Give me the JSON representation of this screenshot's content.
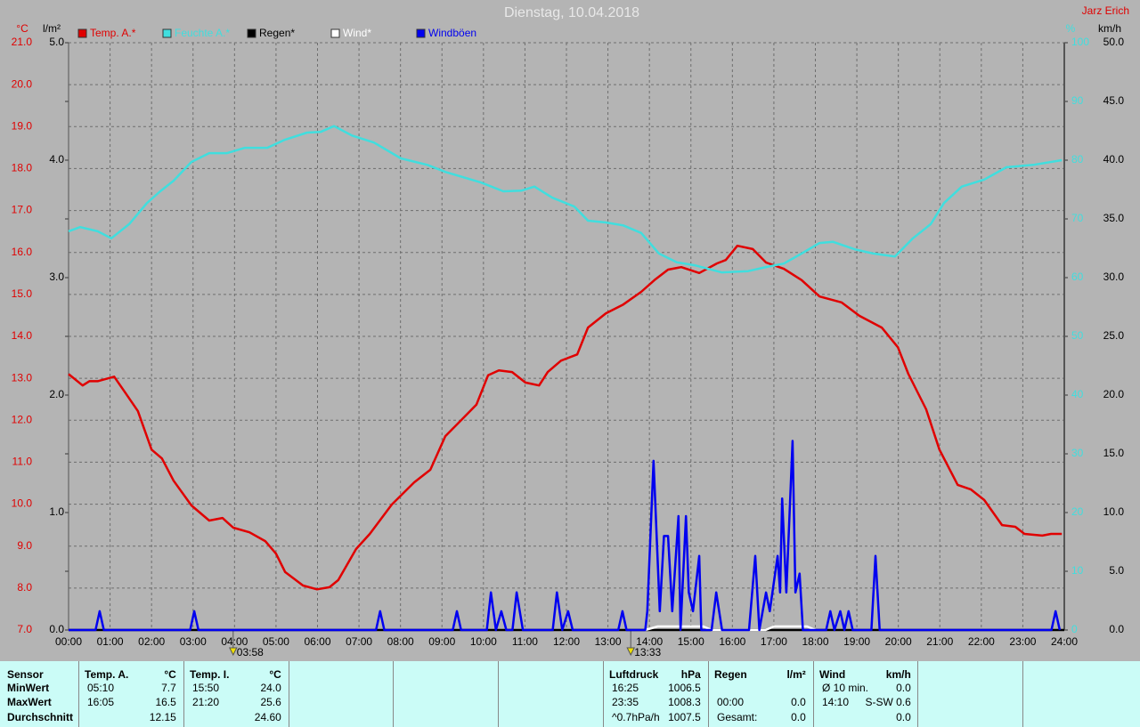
{
  "chart_data": {
    "type": "line",
    "title": "Dienstag, 10.04.2018",
    "author": "Jarz Erich",
    "y_unit": "°C",
    "rain_unit": "l/m²",
    "y2_unit": "%",
    "y3_unit": "km/h",
    "xlim": [
      0,
      24
    ],
    "xticks": [
      {
        "value": 0,
        "label": "00:00"
      },
      {
        "value": 1,
        "label": "01:00"
      },
      {
        "value": 2,
        "label": "02:00"
      },
      {
        "value": 3,
        "label": "03:00"
      },
      {
        "value": 4,
        "label": "04:00"
      },
      {
        "value": 5,
        "label": "05:00"
      },
      {
        "value": 6,
        "label": "06:00"
      },
      {
        "value": 7,
        "label": "07:00"
      },
      {
        "value": 8,
        "label": "08:00"
      },
      {
        "value": 9,
        "label": "09:00"
      },
      {
        "value": 10,
        "label": "10:00"
      },
      {
        "value": 11,
        "label": "11:00"
      },
      {
        "value": 12,
        "label": "12:00"
      },
      {
        "value": 13,
        "label": "13:00"
      },
      {
        "value": 14,
        "label": "14:00"
      },
      {
        "value": 15,
        "label": "15:00"
      },
      {
        "value": 16,
        "label": "16:00"
      },
      {
        "value": 17,
        "label": "17:00"
      },
      {
        "value": 18,
        "label": "18:00"
      },
      {
        "value": 19,
        "label": "19:00"
      },
      {
        "value": 20,
        "label": "20:00"
      },
      {
        "value": 21,
        "label": "21:00"
      },
      {
        "value": 22,
        "label": "22:00"
      },
      {
        "value": 23,
        "label": "23:00"
      },
      {
        "value": 24,
        "label": "24:00"
      }
    ],
    "ylim": [
      7,
      21
    ],
    "yticks": [
      {
        "value": 7,
        "label": "7.0"
      },
      {
        "value": 8,
        "label": "8.0"
      },
      {
        "value": 9,
        "label": "9.0"
      },
      {
        "value": 10,
        "label": "10.0"
      },
      {
        "value": 11,
        "label": "11.0"
      },
      {
        "value": 12,
        "label": "12.0"
      },
      {
        "value": 13,
        "label": "13.0"
      },
      {
        "value": 14,
        "label": "14.0"
      },
      {
        "value": 15,
        "label": "15.0"
      },
      {
        "value": 16,
        "label": "16.0"
      },
      {
        "value": 17,
        "label": "17.0"
      },
      {
        "value": 18,
        "label": "18.0"
      },
      {
        "value": 19,
        "label": "19.0"
      },
      {
        "value": 20,
        "label": "20.0"
      },
      {
        "value": 21,
        "label": "21.0"
      }
    ],
    "rain_lim": [
      0,
      5
    ],
    "rain_ticks": [
      {
        "value": 0,
        "label": "0.0"
      },
      {
        "value": 1,
        "label": "1.0"
      },
      {
        "value": 2,
        "label": "2.0"
      },
      {
        "value": 3,
        "label": "3.0"
      },
      {
        "value": 4,
        "label": "4.0"
      },
      {
        "value": 5,
        "label": "5.0"
      }
    ],
    "y2lim": [
      0,
      100
    ],
    "y2ticks": [
      0,
      10,
      20,
      30,
      40,
      50,
      60,
      70,
      80,
      90,
      100
    ],
    "y3lim": [
      0,
      50
    ],
    "y3ticks": [
      {
        "value": 0,
        "label": "0.0"
      },
      {
        "value": 5,
        "label": "5.0"
      },
      {
        "value": 10,
        "label": "10.0"
      },
      {
        "value": 15,
        "label": "15.0"
      },
      {
        "value": 20,
        "label": "20.0"
      },
      {
        "value": 25,
        "label": "25.0"
      },
      {
        "value": 30,
        "label": "30.0"
      },
      {
        "value": 35,
        "label": "35.0"
      },
      {
        "value": 40,
        "label": "40.0"
      },
      {
        "value": 45,
        "label": "45.0"
      },
      {
        "value": 50,
        "label": "50.0"
      }
    ],
    "grid": true,
    "annotations": [
      {
        "x": 3.967,
        "label": "03:58"
      },
      {
        "x": 13.55,
        "label": "13:33"
      }
    ],
    "series": [
      {
        "name": "Temp. A.*",
        "color": "#e00000",
        "axis": "y",
        "x": [
          0,
          0.34,
          0.5,
          0.7,
          1.1,
          1.35,
          1.67,
          2.0,
          2.25,
          2.53,
          2.96,
          3.39,
          3.71,
          3.97,
          4.36,
          4.74,
          5.0,
          5.22,
          5.65,
          5.99,
          6.29,
          6.5,
          6.93,
          7.26,
          7.79,
          8.33,
          8.72,
          9.08,
          9.4,
          9.83,
          10.11,
          10.37,
          10.69,
          11.01,
          11.34,
          11.55,
          11.87,
          12.26,
          12.52,
          12.95,
          13.37,
          13.8,
          14.12,
          14.45,
          14.77,
          15.2,
          15.63,
          15.84,
          16.12,
          16.49,
          16.81,
          17.24,
          17.67,
          18.1,
          18.63,
          19.06,
          19.6,
          19.99,
          20.24,
          20.67,
          20.99,
          21.43,
          21.75,
          22.07,
          22.5,
          22.82,
          23.04,
          23.47,
          23.68,
          23.94
        ],
        "values": [
          13.1,
          12.83,
          12.93,
          12.93,
          13.04,
          12.68,
          12.22,
          11.3,
          11.09,
          10.56,
          9.97,
          9.61,
          9.67,
          9.44,
          9.33,
          9.12,
          8.82,
          8.38,
          8.06,
          7.97,
          8.02,
          8.19,
          8.93,
          9.29,
          9.99,
          10.52,
          10.82,
          11.62,
          11.94,
          12.37,
          13.07,
          13.19,
          13.15,
          12.9,
          12.83,
          13.15,
          13.42,
          13.57,
          14.21,
          14.55,
          14.76,
          15.06,
          15.34,
          15.59,
          15.65,
          15.51,
          15.74,
          15.82,
          16.16,
          16.08,
          15.76,
          15.61,
          15.34,
          14.95,
          14.81,
          14.49,
          14.21,
          13.74,
          13.11,
          12.26,
          11.3,
          10.46,
          10.35,
          10.1,
          9.5,
          9.46,
          9.29,
          9.25,
          9.29,
          9.29
        ]
      },
      {
        "name": "Feuchte A.*",
        "color": "#40dede",
        "axis": "y2",
        "x": [
          0,
          0.28,
          0.7,
          1.03,
          1.46,
          1.89,
          2.21,
          2.53,
          2.96,
          3.39,
          3.82,
          4.25,
          4.79,
          5.22,
          5.75,
          6.07,
          6.4,
          6.83,
          7.36,
          8.01,
          8.65,
          9.08,
          9.94,
          10.48,
          10.91,
          11.23,
          11.66,
          12.19,
          12.52,
          12.95,
          13.37,
          13.8,
          14.23,
          14.66,
          15.09,
          15.74,
          16.38,
          16.81,
          17.24,
          17.67,
          18.1,
          18.42,
          18.96,
          19.39,
          19.92,
          20.35,
          20.78,
          21.1,
          21.53,
          22.07,
          22.61,
          23.25,
          23.94
        ],
        "values": [
          67.9,
          68.6,
          67.9,
          66.7,
          69.1,
          72.7,
          74.7,
          76.5,
          79.7,
          81.2,
          81.2,
          82.1,
          82.1,
          83.5,
          84.7,
          84.8,
          85.8,
          84.2,
          83.0,
          80.3,
          79.2,
          78.0,
          76.2,
          74.7,
          74.8,
          75.5,
          73.6,
          72.1,
          69.7,
          69.4,
          68.9,
          67.6,
          64.1,
          62.6,
          62.1,
          60.9,
          61.1,
          61.8,
          62.4,
          64.1,
          65.9,
          66.1,
          64.8,
          64.1,
          63.6,
          66.7,
          69.1,
          72.7,
          75.5,
          76.7,
          78.8,
          79.2,
          80.0
        ]
      },
      {
        "name": "Regen*",
        "color": "#000000",
        "axis": "rain",
        "x": [
          0,
          24
        ],
        "values": [
          0,
          0
        ]
      },
      {
        "name": "Wind*",
        "color": "#ffffff",
        "axis": "y3",
        "x": [
          13.9,
          14.2,
          15.3,
          15.5,
          16.8,
          17.0,
          17.8,
          18.0
        ],
        "values": [
          0,
          0.3,
          0.3,
          0,
          0,
          0.3,
          0.3,
          0
        ]
      },
      {
        "name": "Windböen",
        "color": "#0000f0",
        "axis": "y3",
        "x": [
          0,
          0.65,
          0.75,
          0.85,
          2.93,
          3.03,
          3.13,
          7.41,
          7.51,
          7.61,
          9.26,
          9.36,
          9.46,
          10.08,
          10.18,
          10.3,
          10.43,
          10.55,
          10.7,
          10.8,
          10.95,
          11.67,
          11.77,
          11.9,
          12.04,
          12.15,
          13.25,
          13.35,
          13.45,
          13.9,
          13.95,
          14.1,
          14.25,
          14.35,
          14.45,
          14.55,
          14.7,
          14.75,
          14.88,
          14.95,
          15.05,
          15.2,
          15.25,
          15.5,
          15.61,
          15.75,
          16.4,
          16.55,
          16.65,
          16.81,
          16.9,
          17.09,
          17.15,
          17.2,
          17.3,
          17.45,
          17.52,
          17.62,
          17.7,
          18.26,
          18.36,
          18.46,
          18.6,
          18.7,
          18.8,
          18.9,
          19.35,
          19.45,
          19.55,
          23.69,
          23.79,
          23.89
        ],
        "values": [
          0,
          0,
          1.6,
          0,
          0,
          1.6,
          0,
          0,
          1.6,
          0,
          0,
          1.6,
          0,
          0,
          3.2,
          0,
          1.6,
          0,
          0,
          3.2,
          0,
          0,
          3.2,
          0,
          1.6,
          0,
          0,
          1.6,
          0,
          0,
          1.6,
          14.4,
          1.6,
          8.0,
          8.0,
          1.6,
          9.7,
          0,
          9.7,
          3.2,
          1.6,
          6.3,
          0,
          0,
          3.2,
          0,
          0,
          6.3,
          0,
          3.2,
          1.6,
          6.3,
          3.2,
          11.2,
          3.2,
          16.1,
          3.2,
          4.8,
          0,
          0,
          1.6,
          0,
          1.6,
          0,
          1.6,
          0,
          0,
          6.3,
          0,
          0,
          1.6,
          0
        ]
      }
    ]
  },
  "stats": {
    "row_labels": {
      "head": "Sensor",
      "min": "MinWert",
      "max": "MaxWert",
      "avg": "Durchschnitt"
    },
    "blocks": [
      {
        "title": "Temp. A.",
        "unit": "°C",
        "min": {
          "time": "05:10",
          "value": "7.7"
        },
        "max": {
          "time": "16:05",
          "value": "16.5"
        },
        "avg": {
          "value": "12.15"
        }
      },
      {
        "title": "Temp. I.",
        "unit": "°C",
        "min": {
          "time": "15:50",
          "value": "24.0"
        },
        "max": {
          "time": "21:20",
          "value": "25.6"
        },
        "avg": {
          "value": "24.60"
        }
      },
      {
        "title": "Luftdruck",
        "unit": "hPa",
        "min": {
          "time": "16:25",
          "value": "1006.5"
        },
        "max": {
          "time": "23:35",
          "value": "1008.3"
        },
        "avg": {
          "time": "^0.7hPa/h",
          "value": "1007.5"
        }
      },
      {
        "title": "Regen",
        "unit": "l/m²",
        "max": {
          "time": "00:00",
          "value": "0.0"
        },
        "avg": {
          "time": "Gesamt:",
          "value": "0.0"
        }
      },
      {
        "title": "Wind",
        "unit": "km/h",
        "min": {
          "time": "Ø 10 min.",
          "value": "0.0"
        },
        "max": {
          "time": "14:10",
          "value": "S-SW 0.6"
        },
        "avg": {
          "value": "0.0"
        }
      }
    ]
  }
}
